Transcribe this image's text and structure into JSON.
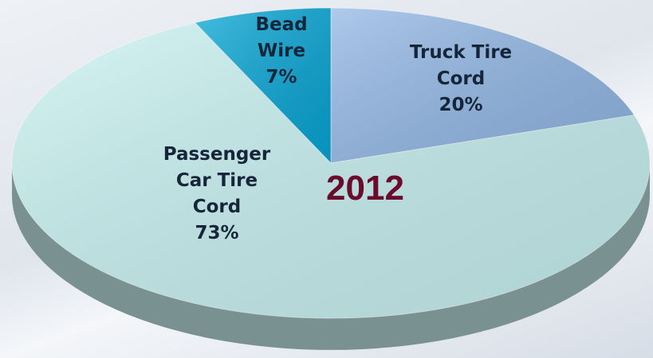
{
  "chart_data": {
    "type": "pie",
    "title": "2012",
    "categories": [
      "Truck Tire Cord",
      "Passenger Car Tire Cord",
      "Bead Wire"
    ],
    "values": [
      20,
      73,
      7
    ],
    "value_labels": [
      "20%",
      "73%",
      "7%"
    ],
    "colors": [
      "#92b8e6",
      "#c9f2f2",
      "#08a6d6"
    ]
  }
}
